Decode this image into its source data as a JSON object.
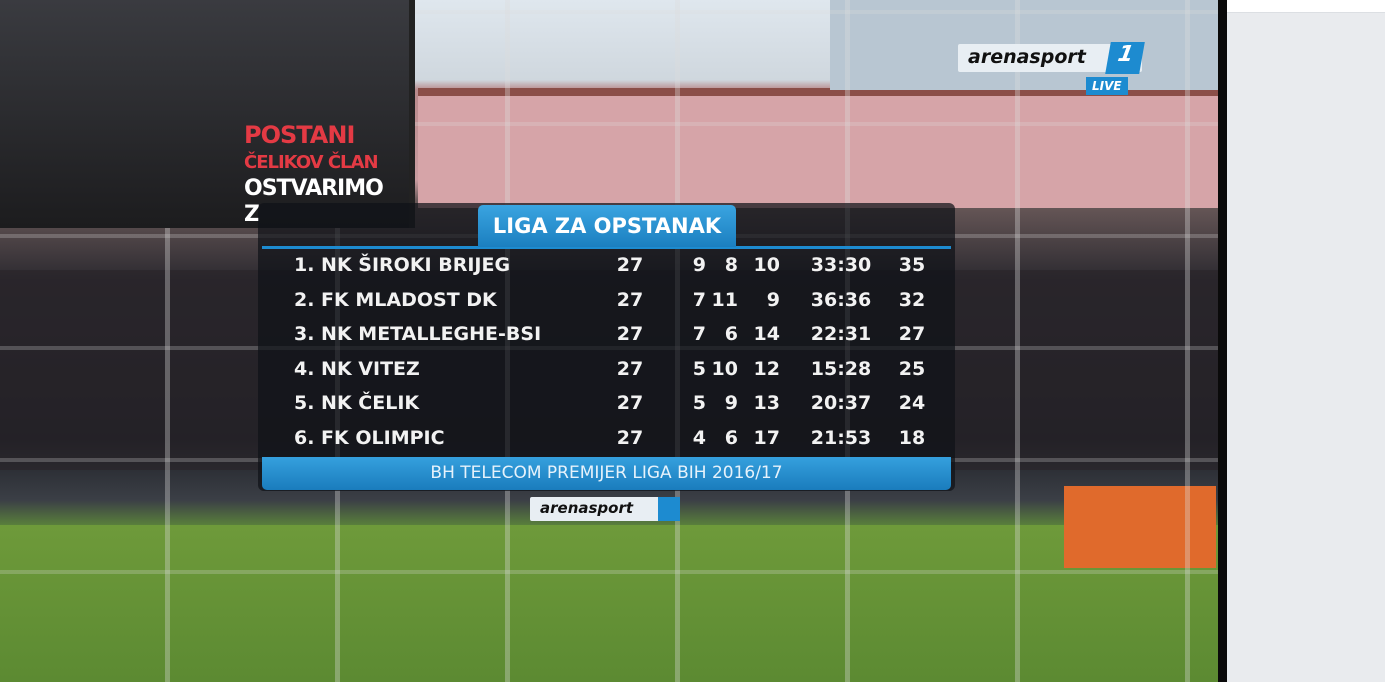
{
  "broadcaster": {
    "logo_text": "arenasport",
    "channel": "1",
    "live": "LIVE"
  },
  "stadium_screen": {
    "lines": [
      "POSTANI",
      "ČELIKOV ČLAN",
      "OSTVARIMO",
      "Z"
    ]
  },
  "standings": {
    "title": "LIGA ZA OPSTANAK",
    "footer": "BH TELECOM PREMIJER LIGA BIH 2016/17",
    "rows": [
      {
        "team": "1. NK ŠIROKI BRIJEG",
        "played": "27",
        "won": "9",
        "drawn": "8",
        "lost": "10",
        "goals": "33:30",
        "points": "35"
      },
      {
        "team": "2. FK MLADOST DK",
        "played": "27",
        "won": "7",
        "drawn": "11",
        "lost": "9",
        "goals": "36:36",
        "points": "32"
      },
      {
        "team": "3. NK METALLEGHE-BSI",
        "played": "27",
        "won": "7",
        "drawn": "6",
        "lost": "14",
        "goals": "22:31",
        "points": "27"
      },
      {
        "team": "4. NK VITEZ",
        "played": "27",
        "won": "5",
        "drawn": "10",
        "lost": "12",
        "goals": "15:28",
        "points": "25"
      },
      {
        "team": "5. NK ČELIK",
        "played": "27",
        "won": "5",
        "drawn": "9",
        "lost": "13",
        "goals": "20:37",
        "points": "24"
      },
      {
        "team": "6. FK OLIMPIC",
        "played": "27",
        "won": "4",
        "drawn": "6",
        "lost": "17",
        "goals": "21:53",
        "points": "18"
      }
    ]
  },
  "colors": {
    "accent": "#1d8bd0",
    "panel": "#0f1218"
  }
}
